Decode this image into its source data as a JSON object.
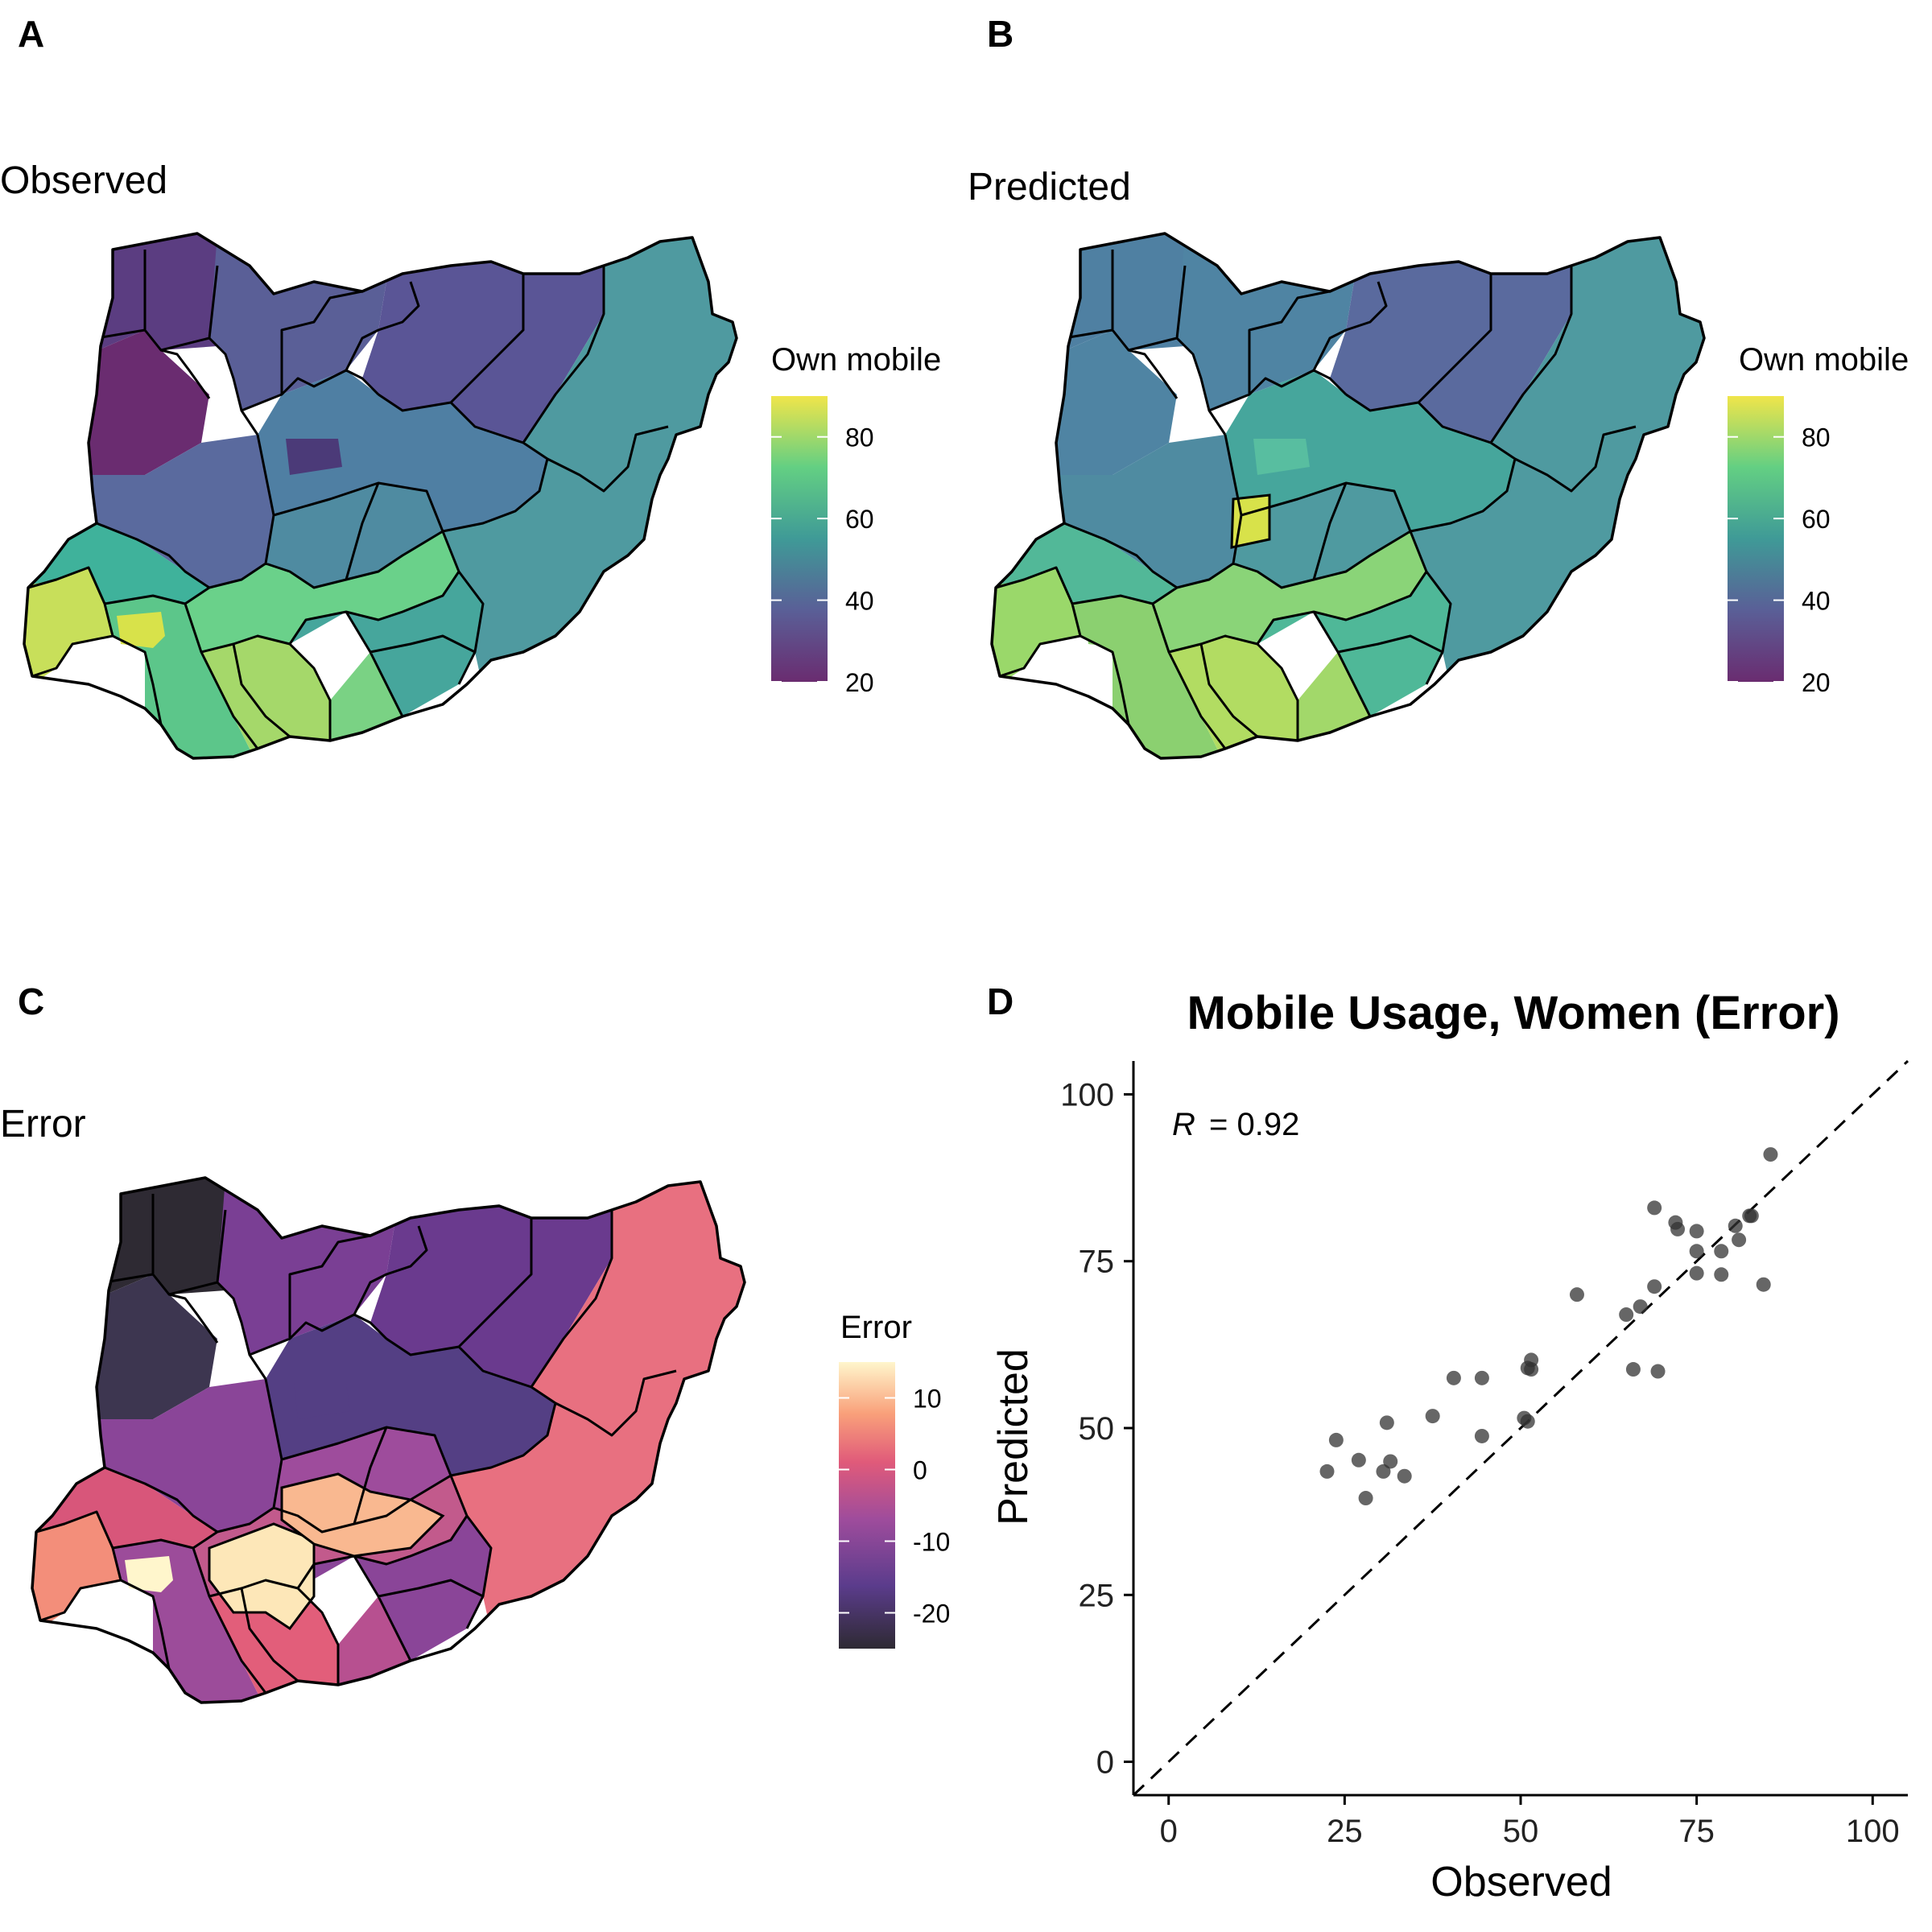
{
  "panel_a": {
    "letter": "A",
    "title": "Observed",
    "legend": {
      "title": "Own mobile",
      "ticks": [
        20,
        40,
        60,
        80
      ],
      "range": [
        20,
        90
      ],
      "palette": "viridis"
    }
  },
  "panel_b": {
    "letter": "B",
    "title": "Predicted",
    "legend": {
      "title": "Own mobile",
      "ticks": [
        20,
        40,
        60,
        80
      ],
      "range": [
        20,
        90
      ],
      "palette": "viridis"
    }
  },
  "panel_c": {
    "letter": "C",
    "title": "Error",
    "legend": {
      "title": "Error",
      "ticks": [
        10,
        0,
        -10,
        -20
      ],
      "range": [
        -25,
        15
      ],
      "palette": "magma"
    }
  },
  "panel_d": {
    "letter": "D"
  },
  "chart_data": {
    "type": "scatter",
    "title": "Mobile Usage, Women (Error)",
    "xlabel": "Observed",
    "ylabel": "Predicted",
    "xlim": [
      -5,
      105
    ],
    "ylim": [
      -5,
      105
    ],
    "xticks": [
      0,
      25,
      50,
      75,
      100
    ],
    "yticks": [
      0,
      25,
      50,
      75,
      100
    ],
    "annotation": "= 0.92",
    "annotation_symbol": "R",
    "reference_line": "y = x (dashed)",
    "point_color": "#333333",
    "points": [
      [
        22.5,
        43.5
      ],
      [
        23.8,
        48.2
      ],
      [
        27,
        45.2
      ],
      [
        28,
        39.5
      ],
      [
        30.5,
        43.5
      ],
      [
        31,
        50.8
      ],
      [
        31.5,
        45
      ],
      [
        33.5,
        42.8
      ],
      [
        37.5,
        51.8
      ],
      [
        40.5,
        57.5
      ],
      [
        44.5,
        57.5
      ],
      [
        44.5,
        48.8
      ],
      [
        50.5,
        51.5
      ],
      [
        51,
        51
      ],
      [
        51,
        59
      ],
      [
        51.5,
        58.8
      ],
      [
        51.5,
        60.2
      ],
      [
        58,
        70
      ],
      [
        65,
        67
      ],
      [
        66,
        58.8
      ],
      [
        67,
        68.2
      ],
      [
        69,
        71.2
      ],
      [
        69,
        83
      ],
      [
        69.5,
        58.5
      ],
      [
        72,
        80.8
      ],
      [
        72.3,
        79.8
      ],
      [
        75,
        79.5
      ],
      [
        75,
        76.5
      ],
      [
        75,
        73.2
      ],
      [
        78.5,
        73
      ],
      [
        78.5,
        76.5
      ],
      [
        80.5,
        80.3
      ],
      [
        81,
        78.2
      ],
      [
        82.5,
        81.8
      ],
      [
        82.8,
        81.8
      ],
      [
        84.5,
        71.5
      ],
      [
        85.5,
        91
      ]
    ]
  }
}
